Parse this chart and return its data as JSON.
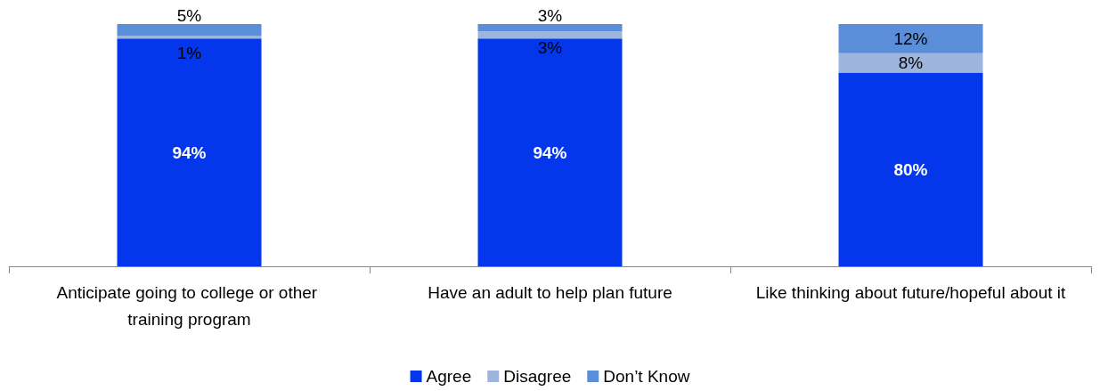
{
  "chart_data": {
    "type": "bar",
    "stacked": true,
    "legend": "bottom",
    "categories": [
      "Anticipate going to college or other training program",
      "Have an adult to help plan future",
      "Like thinking about future/hopeful about it"
    ],
    "series": [
      {
        "name": "Agree",
        "color": "#0437eb",
        "values": [
          94,
          94,
          80
        ],
        "value_labels": [
          "94%",
          "94%",
          "80%"
        ]
      },
      {
        "name": "Disagree",
        "color": "#9db5dd",
        "values": [
          1,
          3,
          8
        ],
        "value_labels": [
          "1%",
          "3%",
          "8%"
        ]
      },
      {
        "name": "Don’t Know",
        "color": "#5b8ed8",
        "values": [
          5,
          3,
          12
        ],
        "value_labels": [
          "5%",
          "3%",
          "12%"
        ]
      }
    ]
  }
}
